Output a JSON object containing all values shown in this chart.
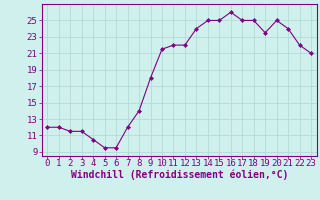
{
  "x": [
    0,
    1,
    2,
    3,
    4,
    5,
    6,
    7,
    8,
    9,
    10,
    11,
    12,
    13,
    14,
    15,
    16,
    17,
    18,
    19,
    20,
    21,
    22,
    23
  ],
  "y": [
    12.0,
    12.0,
    11.5,
    11.5,
    10.5,
    9.5,
    9.5,
    12.0,
    14.0,
    18.0,
    21.5,
    22.0,
    22.0,
    24.0,
    25.0,
    25.0,
    26.0,
    25.0,
    25.0,
    23.5,
    25.0,
    24.0,
    22.0,
    21.0
  ],
  "line_color": "#800080",
  "marker": "D",
  "marker_size": 2.0,
  "bg_color": "#cff0ec",
  "grid_color": "#aad8d0",
  "tick_label_color": "#800080",
  "xlabel": "Windchill (Refroidissement éolien,°C)",
  "ylim": [
    8.5,
    27
  ],
  "yticks": [
    9,
    11,
    13,
    15,
    17,
    19,
    21,
    23,
    25
  ],
  "xticks": [
    0,
    1,
    2,
    3,
    4,
    5,
    6,
    7,
    8,
    9,
    10,
    11,
    12,
    13,
    14,
    15,
    16,
    17,
    18,
    19,
    20,
    21,
    22,
    23
  ],
  "font_size": 6.5,
  "xlabel_fontsize": 7.0
}
